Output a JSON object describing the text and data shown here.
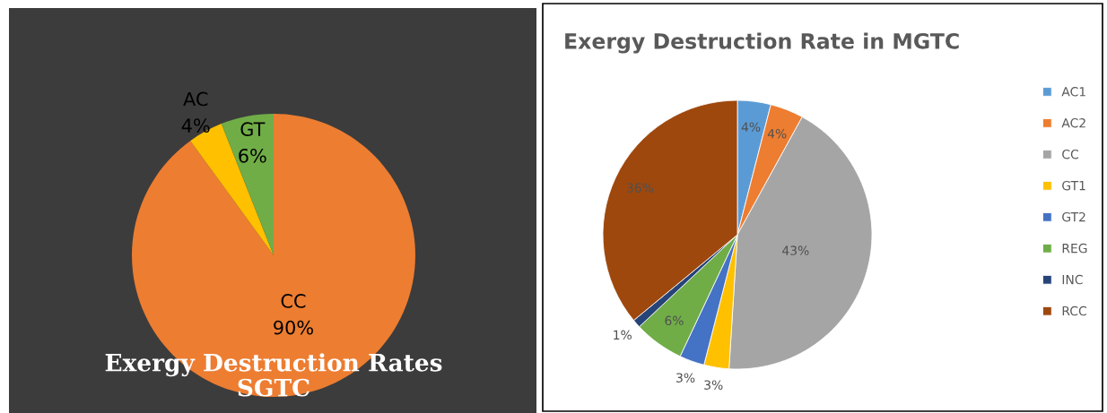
{
  "chart_data": [
    {
      "type": "pie",
      "title": "Exergy Destruction Rates SGTC",
      "categories": [
        "CC",
        "AC",
        "GT"
      ],
      "values": [
        90,
        4,
        6
      ],
      "colors": [
        "#ed7d31",
        "#ffc000",
        "#70ad47"
      ],
      "value_labels": [
        "90%",
        "4%",
        "6%"
      ],
      "legend": false
    },
    {
      "type": "pie",
      "title": "Exergy Destruction Rate in MGTC",
      "categories": [
        "AC1",
        "AC2",
        "CC",
        "GT1",
        "GT2",
        "REG",
        "INC",
        "RCC"
      ],
      "values": [
        4,
        4,
        43,
        3,
        3,
        6,
        1,
        36
      ],
      "colors": [
        "#5b9bd5",
        "#ed7d31",
        "#a5a5a5",
        "#ffc000",
        "#4472c4",
        "#70ad47",
        "#264478",
        "#9e480e"
      ],
      "value_labels": [
        "4%",
        "4%",
        "43%",
        "3%",
        "3%",
        "6%",
        "1%",
        "36%"
      ],
      "legend": "right"
    }
  ]
}
